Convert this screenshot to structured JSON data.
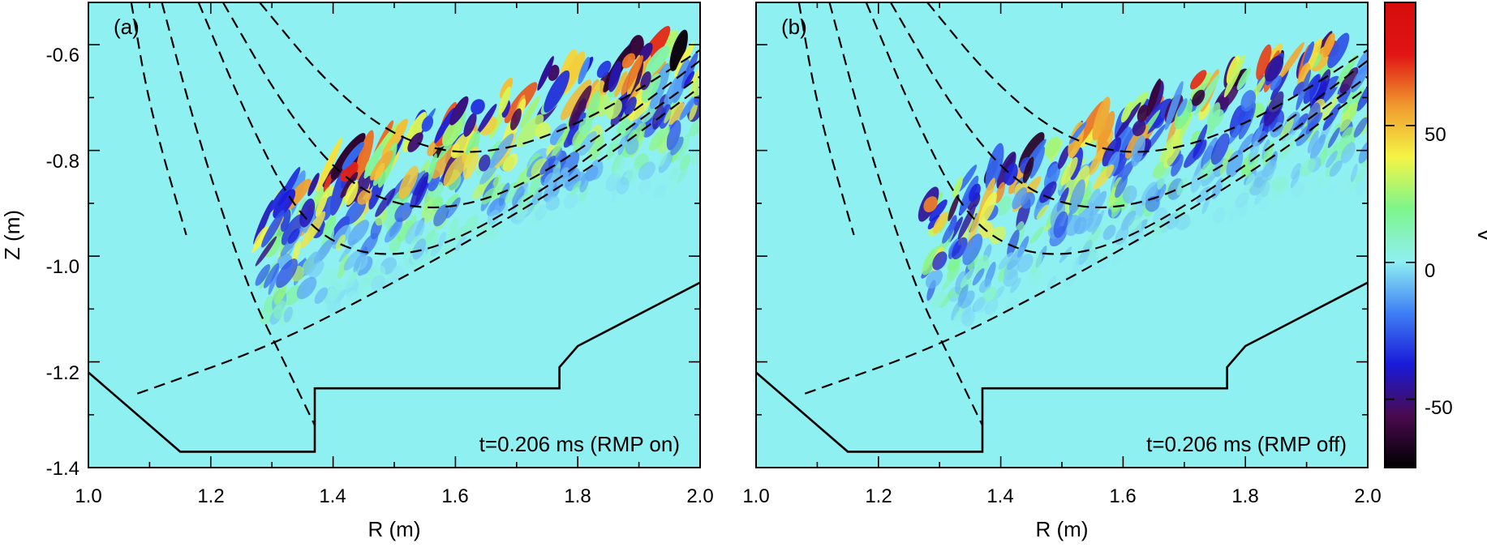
{
  "chart_data": [
    {
      "type": "heatmap",
      "panel_label": "(a)",
      "annotation": "t=0.206 ms (RMP on)",
      "xlabel": "R (m)",
      "ylabel": "Z (m)",
      "xlim": [
        1.0,
        2.0
      ],
      "ylim": [
        -1.4,
        -0.52
      ],
      "xticks": [
        "1.0",
        "1.2",
        "1.4",
        "1.6",
        "1.8",
        "2.0"
      ],
      "yticks": [
        "-0.6",
        "-0.8",
        "-1.0",
        "-1.2",
        "-1.4"
      ],
      "wall": [
        [
          1.0,
          -1.22
        ],
        [
          1.15,
          -1.37
        ],
        [
          1.37,
          -1.37
        ],
        [
          1.37,
          -1.25
        ],
        [
          1.77,
          -1.25
        ],
        [
          1.77,
          -1.21
        ],
        [
          1.8,
          -1.17
        ],
        [
          2.0,
          -1.05
        ]
      ],
      "flux_surfaces": [
        [
          [
            1.28,
            -0.52
          ],
          [
            1.38,
            -0.66
          ],
          [
            1.48,
            -0.76
          ],
          [
            1.58,
            -0.805
          ],
          [
            1.68,
            -0.8
          ],
          [
            1.78,
            -0.76
          ],
          [
            1.88,
            -0.7
          ],
          [
            2.0,
            -0.61
          ]
        ],
        [
          [
            1.22,
            -0.52
          ],
          [
            1.32,
            -0.72
          ],
          [
            1.42,
            -0.86
          ],
          [
            1.52,
            -0.91
          ],
          [
            1.62,
            -0.905
          ],
          [
            1.72,
            -0.86
          ],
          [
            1.84,
            -0.77
          ],
          [
            2.0,
            -0.63
          ]
        ],
        [
          [
            1.18,
            -0.52
          ],
          [
            1.26,
            -0.74
          ],
          [
            1.34,
            -0.92
          ],
          [
            1.42,
            -0.99
          ],
          [
            1.52,
            -1.0
          ],
          [
            1.62,
            -0.96
          ],
          [
            1.75,
            -0.87
          ],
          [
            1.88,
            -0.76
          ],
          [
            2.0,
            -0.66
          ]
        ]
      ],
      "separatrix": [
        [
          1.08,
          -1.26
        ],
        [
          1.3,
          -1.17
        ],
        [
          1.5,
          -1.05
        ],
        [
          1.7,
          -0.92
        ],
        [
          1.85,
          -0.81
        ],
        [
          2.0,
          -0.68
        ]
      ],
      "separatrix_leg": [
        [
          1.12,
          -0.52
        ],
        [
          1.18,
          -0.78
        ],
        [
          1.26,
          -1.06
        ],
        [
          1.32,
          -1.2
        ],
        [
          1.37,
          -1.32
        ]
      ],
      "inner_leg": [
        [
          1.07,
          -0.52
        ],
        [
          1.1,
          -0.72
        ],
        [
          1.16,
          -0.96
        ]
      ]
    },
    {
      "type": "heatmap",
      "panel_label": "(b)",
      "annotation": "t=0.206 ms (RMP off)",
      "xlabel": "R (m)",
      "ylabel": "",
      "xlim": [
        1.0,
        2.0
      ],
      "ylim": [
        -1.4,
        -0.52
      ],
      "xticks": [
        "1.0",
        "1.2",
        "1.4",
        "1.6",
        "1.8",
        "2.0"
      ],
      "wall": [
        [
          1.0,
          -1.22
        ],
        [
          1.15,
          -1.37
        ],
        [
          1.37,
          -1.37
        ],
        [
          1.37,
          -1.25
        ],
        [
          1.77,
          -1.25
        ],
        [
          1.77,
          -1.21
        ],
        [
          1.8,
          -1.17
        ],
        [
          2.0,
          -1.05
        ]
      ],
      "flux_surfaces": [
        [
          [
            1.28,
            -0.52
          ],
          [
            1.38,
            -0.66
          ],
          [
            1.48,
            -0.76
          ],
          [
            1.58,
            -0.805
          ],
          [
            1.68,
            -0.8
          ],
          [
            1.78,
            -0.76
          ],
          [
            1.88,
            -0.7
          ],
          [
            2.0,
            -0.61
          ]
        ],
        [
          [
            1.22,
            -0.52
          ],
          [
            1.32,
            -0.72
          ],
          [
            1.42,
            -0.86
          ],
          [
            1.52,
            -0.91
          ],
          [
            1.62,
            -0.905
          ],
          [
            1.72,
            -0.86
          ],
          [
            1.84,
            -0.77
          ],
          [
            2.0,
            -0.63
          ]
        ],
        [
          [
            1.18,
            -0.52
          ],
          [
            1.26,
            -0.74
          ],
          [
            1.34,
            -0.92
          ],
          [
            1.42,
            -0.99
          ],
          [
            1.52,
            -1.0
          ],
          [
            1.62,
            -0.96
          ],
          [
            1.75,
            -0.87
          ],
          [
            1.88,
            -0.76
          ],
          [
            2.0,
            -0.66
          ]
        ]
      ],
      "separatrix": [
        [
          1.08,
          -1.26
        ],
        [
          1.3,
          -1.17
        ],
        [
          1.5,
          -1.05
        ],
        [
          1.7,
          -0.92
        ],
        [
          1.85,
          -0.81
        ],
        [
          2.0,
          -0.68
        ]
      ],
      "separatrix_leg": [
        [
          1.12,
          -0.52
        ],
        [
          1.18,
          -0.78
        ],
        [
          1.26,
          -1.06
        ],
        [
          1.32,
          -1.2
        ],
        [
          1.37,
          -1.32
        ]
      ],
      "inner_leg": [
        [
          1.07,
          -0.52
        ],
        [
          1.1,
          -0.72
        ],
        [
          1.16,
          -0.96
        ]
      ]
    }
  ],
  "colorbar": {
    "label": "V",
    "range": [
      -75,
      95
    ],
    "ticks": [
      "50",
      "0",
      "-50"
    ],
    "tick_values": [
      50,
      0,
      -50
    ],
    "colors": [
      "#000000",
      "#4a0a4f",
      "#1a1ad8",
      "#3f7ff5",
      "#8ff0f2",
      "#7df58c",
      "#f4f545",
      "#f09a2e",
      "#e01414",
      "#d60c0c"
    ],
    "background": "#8ff0f2"
  }
}
